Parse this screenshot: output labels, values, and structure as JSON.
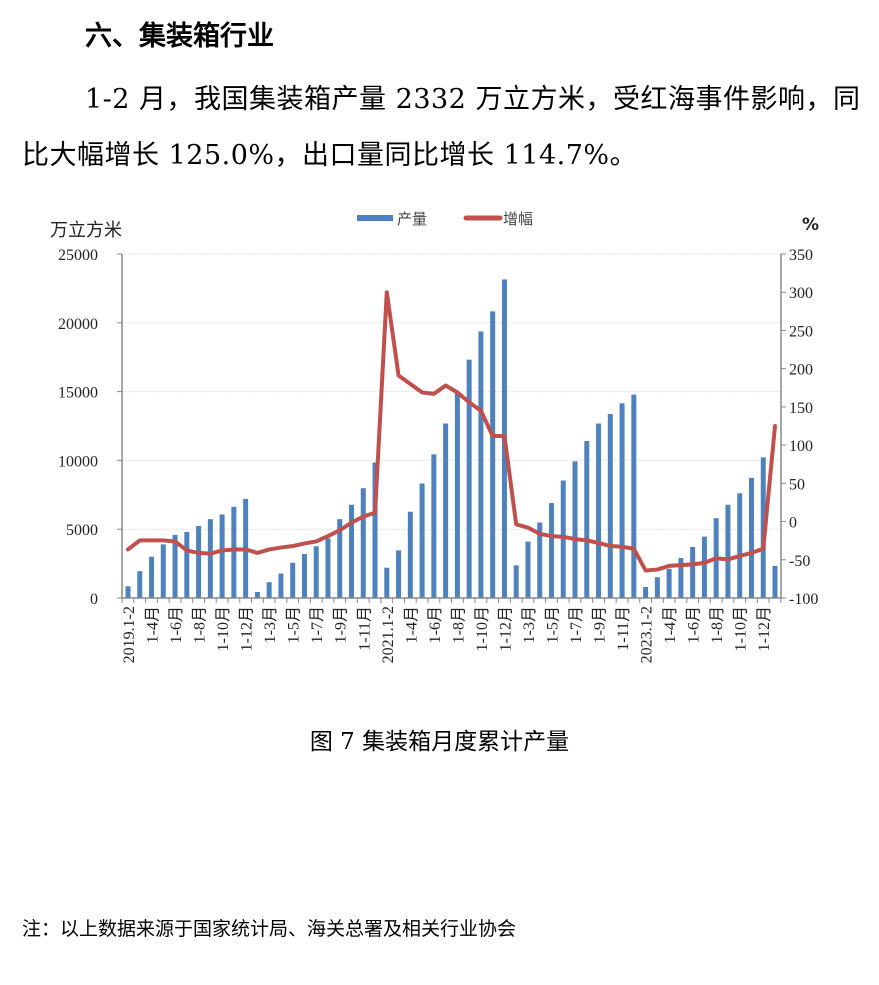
{
  "section_heading": "六、集装箱行业",
  "paragraph": "1-2 月，我国集装箱产量 2332 万立方米，受红海事件影响，同比大幅增长 125.0%，出口量同比增长 114.7%。",
  "caption": "图 7 集装箱月度累计产量",
  "footnote": "注：以上数据来源于国家统计局、海关总署及相关行业协会",
  "chart_data": {
    "type": "bar+line",
    "ylabel_left": "万立方米",
    "ylabel_right": "%",
    "ylim_left": [
      0,
      25000
    ],
    "ylim_right": [
      -100,
      350
    ],
    "left_ticks": [
      "0",
      "5000",
      "10000",
      "15000",
      "20000",
      "25000"
    ],
    "right_ticks": [
      "-100",
      "-50",
      "0",
      "50",
      "100",
      "150",
      "200",
      "250",
      "300",
      "350"
    ],
    "grid": true,
    "legend_position": "top-center",
    "colors": {
      "bar": "#4f81bd",
      "line": "#c0504d"
    },
    "categories": [
      "2019.1-2",
      "",
      "1-4月",
      "",
      "1-6月",
      "",
      "1-8月",
      "",
      "1-10月",
      "",
      "1-12月",
      "",
      "1-3月",
      "",
      "1-5月",
      "",
      "1-7月",
      "",
      "1-9月",
      "",
      "1-11月",
      "",
      "2021.1-2",
      "",
      "1-4月",
      "",
      "1-6月",
      "",
      "1-8月",
      "",
      "1-10月",
      "",
      "1-12月",
      "",
      "1-3月",
      "",
      "1-5月",
      "",
      "1-7月",
      "",
      "1-9月",
      "",
      "1-11月",
      "",
      "2023.1-2",
      "",
      "1-4月",
      "",
      "1-6月",
      "",
      "1-8月",
      "",
      "1-10月",
      "",
      "1-12月",
      ""
    ],
    "series": [
      {
        "name": "产量",
        "axis": "left",
        "type": "bar",
        "values": [
          850,
          1950,
          3000,
          3900,
          4590,
          4800,
          5240,
          5730,
          6070,
          6630,
          7200,
          440,
          1150,
          1780,
          2560,
          3200,
          3760,
          4340,
          5730,
          6780,
          7980,
          9850,
          2200,
          3460,
          6270,
          8320,
          10440,
          12680,
          14930,
          17320,
          19370,
          20830,
          23150,
          2370,
          4100,
          5490,
          6900,
          8540,
          9930,
          11410,
          12680,
          13370,
          14150,
          14780,
          800,
          1510,
          2120,
          2900,
          3710,
          4460,
          5800,
          6780,
          7610,
          8730,
          10220,
          2332
        ]
      },
      {
        "name": "增幅",
        "axis": "right",
        "type": "line",
        "values": [
          -36.5,
          -24.6,
          -24.6,
          -24.6,
          -26,
          -37.8,
          -41,
          -42,
          -37.8,
          -36.5,
          -36.5,
          -41,
          -36.5,
          -34,
          -32,
          -28.6,
          -26,
          -19,
          -11.5,
          -1.4,
          6.5,
          11.7,
          300,
          191,
          180,
          169,
          167,
          178,
          169,
          156,
          145,
          112,
          112,
          -3.6,
          -8,
          -16,
          -19,
          -20,
          -23,
          -24.6,
          -28,
          -32,
          -33,
          -35.6,
          -64,
          -62.8,
          -58,
          -57,
          -56,
          -54,
          -48,
          -49.6,
          -45,
          -41,
          -35.6,
          125.0
        ]
      }
    ]
  }
}
